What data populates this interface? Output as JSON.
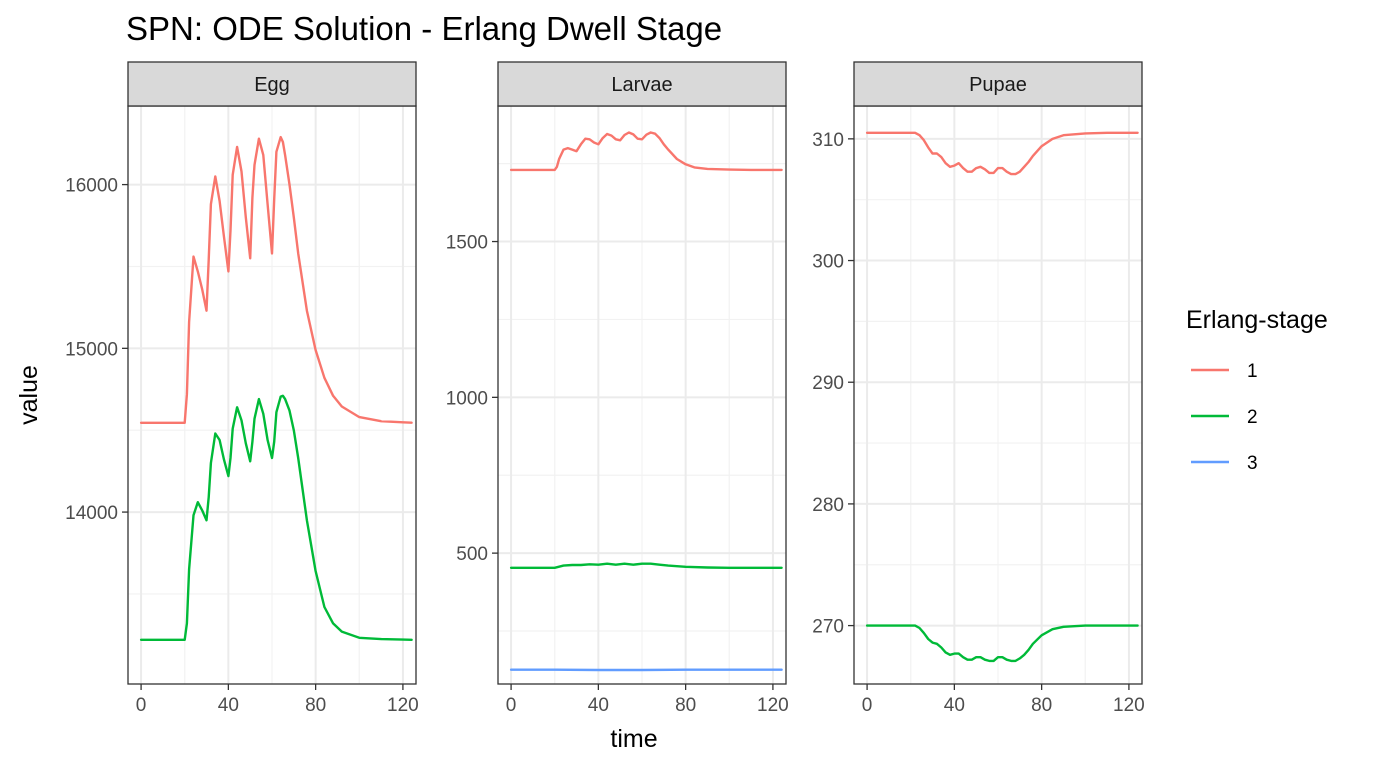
{
  "chart_data": {
    "type": "line",
    "title": "SPN: ODE Solution - Erlang Dwell Stage",
    "xlabel": "time",
    "ylabel": "value",
    "legend": {
      "title": "Erlang-stage",
      "placement": "right"
    },
    "grid": true,
    "colors": {
      "1": "#F8766D",
      "2": "#00BA38",
      "3": "#619CFF"
    },
    "panels": [
      {
        "name": "Egg",
        "xlim": [
          -6,
          126
        ],
        "ylim": [
          12950,
          16480
        ],
        "xticks": [
          0,
          40,
          80,
          120
        ],
        "xtick_labels": [
          "0",
          "40",
          "80",
          "120"
        ],
        "yticks": [
          14000,
          15000,
          16000
        ],
        "ytick_labels": [
          "14000",
          "15000",
          "16000"
        ],
        "yminor": [
          13500,
          14500,
          15500
        ],
        "series": [
          {
            "name": "1",
            "x": [
              0,
              20,
              21,
              22,
              24,
              26,
              28,
              30,
              31,
              32,
              34,
              36,
              38,
              40,
              41,
              42,
              44,
              46,
              48,
              50,
              51,
              52,
              54,
              56,
              58,
              60,
              61,
              62,
              64,
              65,
              66,
              68,
              70,
              72,
              76,
              80,
              84,
              88,
              92,
              100,
              110,
              120,
              124
            ],
            "y": [
              14545,
              14545,
              14720,
              15160,
              15560,
              15470,
              15360,
              15230,
              15540,
              15880,
              16050,
              15900,
              15680,
              15470,
              15720,
              16060,
              16230,
              16080,
              15800,
              15550,
              15920,
              16120,
              16280,
              16180,
              15880,
              15580,
              15910,
              16200,
              16290,
              16260,
              16180,
              16000,
              15800,
              15580,
              15230,
              14990,
              14820,
              14710,
              14645,
              14580,
              14555,
              14548,
              14546
            ]
          },
          {
            "name": "2",
            "x": [
              0,
              20,
              21,
              22,
              24,
              26,
              28,
              30,
              31,
              32,
              34,
              36,
              38,
              40,
              41,
              42,
              44,
              46,
              48,
              50,
              51,
              52,
              54,
              56,
              58,
              60,
              61,
              62,
              64,
              65,
              66,
              68,
              70,
              72,
              76,
              80,
              84,
              88,
              92,
              100,
              110,
              120,
              124
            ],
            "y": [
              13220,
              13220,
              13320,
              13650,
              13980,
              14060,
              14010,
              13950,
              14090,
              14300,
              14480,
              14440,
              14320,
              14220,
              14330,
              14510,
              14640,
              14560,
              14420,
              14310,
              14430,
              14570,
              14690,
              14600,
              14440,
              14330,
              14430,
              14610,
              14705,
              14710,
              14690,
              14620,
              14500,
              14330,
              13950,
              13640,
              13420,
              13320,
              13270,
              13232,
              13224,
              13221,
              13220
            ]
          }
        ]
      },
      {
        "name": "Larvae",
        "xlim": [
          -6,
          126
        ],
        "ylim": [
          80,
          1935
        ],
        "xticks": [
          0,
          40,
          80,
          120
        ],
        "xtick_labels": [
          "0",
          "40",
          "80",
          "120"
        ],
        "yticks": [
          500,
          1000,
          1500
        ],
        "ytick_labels": [
          "500",
          "1000",
          "1500"
        ],
        "yminor": [
          250,
          750,
          1250,
          1750
        ],
        "series": [
          {
            "name": "1",
            "x": [
              0,
              20,
              21,
              22,
              24,
              26,
              28,
              30,
              32,
              34,
              36,
              38,
              40,
              42,
              44,
              46,
              48,
              50,
              52,
              54,
              56,
              58,
              60,
              62,
              64,
              66,
              68,
              70,
              72,
              76,
              80,
              84,
              90,
              100,
              110,
              124
            ],
            "y": [
              1730,
              1730,
              1740,
              1765,
              1795,
              1800,
              1795,
              1790,
              1812,
              1830,
              1828,
              1818,
              1812,
              1832,
              1845,
              1840,
              1828,
              1825,
              1842,
              1850,
              1844,
              1830,
              1828,
              1843,
              1850,
              1846,
              1832,
              1812,
              1795,
              1765,
              1748,
              1738,
              1733,
              1731,
              1730,
              1730
            ]
          },
          {
            "name": "2",
            "x": [
              0,
              20,
              24,
              28,
              32,
              36,
              40,
              44,
              48,
              52,
              56,
              60,
              64,
              68,
              72,
              80,
              90,
              100,
              124
            ],
            "y": [
              453,
              453,
              460,
              462,
              462,
              464,
              463,
              466,
              463,
              466,
              463,
              466,
              466,
              463,
              460,
              456,
              454,
              453,
              453
            ]
          },
          {
            "name": "3",
            "x": [
              0,
              20,
              40,
              60,
              80,
              100,
              124
            ],
            "y": [
              126,
              126,
              125,
              125,
              126,
              126,
              126
            ]
          }
        ]
      },
      {
        "name": "Pupae",
        "xlim": [
          -6,
          126
        ],
        "ylim": [
          265.2,
          312.7
        ],
        "xticks": [
          0,
          40,
          80,
          120
        ],
        "xtick_labels": [
          "0",
          "40",
          "80",
          "120"
        ],
        "yticks": [
          270,
          280,
          290,
          300,
          310
        ],
        "ytick_labels": [
          "270",
          "280",
          "290",
          "300",
          "310"
        ],
        "yminor": [
          275,
          285,
          295,
          305
        ],
        "series": [
          {
            "name": "1",
            "x": [
              0,
              22,
              24,
              26,
              28,
              30,
              32,
              34,
              36,
              38,
              40,
              42,
              44,
              46,
              48,
              50,
              52,
              54,
              56,
              58,
              60,
              62,
              64,
              66,
              68,
              70,
              72,
              74,
              76,
              80,
              85,
              90,
              100,
              110,
              124
            ],
            "y": [
              310.5,
              310.5,
              310.3,
              309.9,
              309.3,
              308.8,
              308.8,
              308.5,
              308.0,
              307.7,
              307.8,
              308.0,
              307.6,
              307.3,
              307.3,
              307.6,
              307.7,
              307.5,
              307.2,
              307.2,
              307.6,
              307.6,
              307.3,
              307.1,
              307.1,
              307.3,
              307.7,
              308.1,
              308.6,
              309.4,
              310.0,
              310.3,
              310.45,
              310.5,
              310.5
            ]
          },
          {
            "name": "2",
            "x": [
              0,
              22,
              24,
              26,
              28,
              30,
              32,
              34,
              36,
              38,
              40,
              42,
              44,
              46,
              48,
              50,
              52,
              54,
              56,
              58,
              60,
              62,
              64,
              66,
              68,
              70,
              72,
              74,
              76,
              80,
              85,
              90,
              100,
              110,
              124
            ],
            "y": [
              270.0,
              270.0,
              269.8,
              269.4,
              268.9,
              268.6,
              268.5,
              268.2,
              267.8,
              267.6,
              267.7,
              267.7,
              267.4,
              267.2,
              267.2,
              267.4,
              267.4,
              267.2,
              267.1,
              267.1,
              267.4,
              267.4,
              267.2,
              267.1,
              267.1,
              267.3,
              267.6,
              268.0,
              268.5,
              269.2,
              269.7,
              269.9,
              270.0,
              270.0,
              270.0
            ]
          }
        ]
      }
    ]
  }
}
